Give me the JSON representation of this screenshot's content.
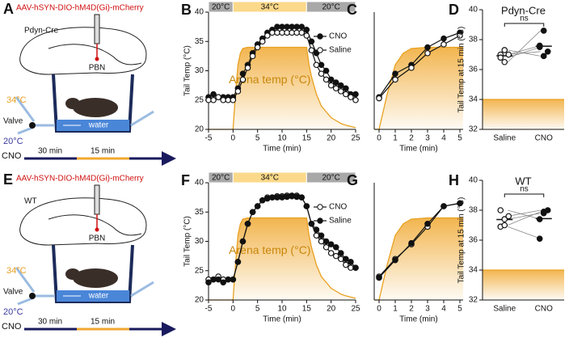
{
  "diagrams": [
    {
      "panel": "A",
      "construct": "AAV-hSYN-DIO-hM4D(Gi)-mCherry",
      "label": "Pdyn-Cre",
      "region": "PBN",
      "hot": "34°C",
      "valve": "Valve",
      "cold": "20°C",
      "water": "water",
      "drug": "CNO",
      "pre": "30 min",
      "post": "15 min"
    },
    {
      "panel": "E",
      "construct": "AAV-hSYN-DIO-hM4D(Gi)-mCherry",
      "label": "WT",
      "region": "PBN",
      "hot": "34°C",
      "valve": "Valve",
      "cold": "20°C",
      "water": "water",
      "drug": "CNO",
      "pre": "30 min",
      "post": "15 min"
    }
  ],
  "chart_data": [
    {
      "type": "line",
      "panel": "B",
      "xlabel": "Time (min)",
      "ylabel": "Tail Temp (°C)",
      "annotation": "Arena temp (°C)",
      "legend": "right",
      "xlim": [
        -5,
        25
      ],
      "xticks": [
        -5,
        0,
        5,
        10,
        15,
        20,
        25
      ],
      "ylim": [
        20,
        40
      ],
      "yticks": [
        20,
        25,
        30,
        35,
        40
      ],
      "phases": [
        {
          "label": "20°C",
          "start": -5,
          "end": 0
        },
        {
          "label": "34°C",
          "start": 0,
          "end": 15
        },
        {
          "label": "20°C",
          "start": 15,
          "end": 25
        }
      ],
      "x": [
        -5,
        -4,
        -3,
        -2,
        -1,
        0,
        1,
        2,
        3,
        4,
        5,
        6,
        7,
        8,
        9,
        10,
        11,
        12,
        13,
        14,
        15,
        16,
        17,
        18,
        19,
        20,
        21,
        22,
        23,
        24,
        25
      ],
      "series": [
        {
          "name": "CNO",
          "marker": "filled",
          "color": "#111111",
          "values": [
            25.5,
            26,
            25.5,
            25.5,
            25.5,
            25.5,
            27,
            29.5,
            31,
            33,
            34.5,
            35.5,
            36.5,
            37,
            37.5,
            37.5,
            37.5,
            37.5,
            37.5,
            37.5,
            37,
            35,
            33,
            31,
            30,
            28.5,
            28,
            27.5,
            27,
            26,
            26
          ]
        },
        {
          "name": "Saline",
          "marker": "open",
          "color": "#111111",
          "values": [
            25,
            25,
            25.5,
            25,
            25,
            25,
            26.5,
            28.5,
            30.5,
            32.5,
            34,
            35,
            36,
            36.5,
            36.5,
            36.5,
            36.5,
            36.5,
            36.5,
            36.5,
            36,
            33.5,
            31,
            29.5,
            28.5,
            27.5,
            27,
            26.5,
            26,
            25.5,
            25
          ]
        }
      ],
      "arena": {
        "color": "#e8a020",
        "x": [
          -5,
          0,
          0.5,
          1,
          1.5,
          2,
          3,
          15,
          15.5,
          16,
          17,
          18,
          19,
          20,
          21,
          22,
          23,
          24,
          25
        ],
        "values": [
          20,
          20,
          26,
          31,
          33,
          33.8,
          34,
          34,
          31,
          29,
          26,
          24,
          23,
          22,
          21.5,
          21,
          20.7,
          20.5,
          20.3
        ]
      }
    },
    {
      "type": "line",
      "panel": "C",
      "xlabel": "Time (min)",
      "xlim": [
        -0.3,
        5.2
      ],
      "xticks": [
        0,
        1,
        2,
        3,
        4,
        5
      ],
      "ylim": [
        20,
        40
      ],
      "x": [
        0,
        1,
        2,
        3,
        4,
        5
      ],
      "series": [
        {
          "name": "CNO",
          "marker": "filled",
          "color": "#111111",
          "values": [
            25.5,
            29.5,
            31,
            34,
            35.5,
            36.5
          ]
        },
        {
          "name": "Saline",
          "marker": "open",
          "color": "#111111",
          "values": [
            25.3,
            28.5,
            30.5,
            33,
            34.5,
            36
          ]
        }
      ],
      "arena": {
        "color": "#e8a020",
        "x": [
          -0.3,
          0,
          0.5,
          1,
          1.5,
          2,
          3,
          5.2
        ],
        "values": [
          20,
          20,
          26,
          31,
          33,
          33.8,
          34,
          34
        ]
      }
    },
    {
      "type": "dot",
      "panel": "D",
      "title": "Pdyn-Cre",
      "ylabel": "Tail Temp at 15 min (°C)",
      "annotation": "ns",
      "arena_temp": 34,
      "arena_color": "#e8a020",
      "ylim": [
        32,
        40
      ],
      "yticks": [
        32,
        34,
        36,
        38,
        40
      ],
      "series": [
        {
          "name": "Saline",
          "marker": "open",
          "values": [
            37,
            36.5,
            37,
            36.8,
            37.3
          ]
        },
        {
          "name": "CNO",
          "marker": "filled",
          "values": [
            37.6,
            38.6,
            37.2,
            37.5,
            36.9
          ]
        }
      ]
    },
    {
      "type": "line",
      "panel": "F",
      "xlabel": "Time (min)",
      "ylabel": "Tail Temp (°C)",
      "annotation": "Arena temp (°C)",
      "legend": "right",
      "xlim": [
        -5,
        25
      ],
      "xticks": [
        -5,
        0,
        5,
        10,
        15,
        20,
        25
      ],
      "ylim": [
        20,
        40
      ],
      "yticks": [
        20,
        25,
        30,
        35,
        40
      ],
      "phases": [
        {
          "label": "20°C",
          "start": -5,
          "end": 0
        },
        {
          "label": "34°C",
          "start": 0,
          "end": 15
        },
        {
          "label": "20°C",
          "start": 15,
          "end": 25
        }
      ],
      "x": [
        -5,
        -4,
        -3,
        -2,
        -1,
        0,
        1,
        2,
        3,
        4,
        5,
        6,
        7,
        8,
        9,
        10,
        11,
        12,
        13,
        14,
        15,
        16,
        17,
        18,
        19,
        20,
        21,
        22,
        23,
        24,
        25
      ],
      "series": [
        {
          "name": "CNO",
          "marker": "open",
          "color": "#111111",
          "values": [
            23.5,
            23.5,
            24,
            23.5,
            23.5,
            23.5,
            26.5,
            30,
            33,
            35,
            36,
            37,
            37.5,
            37.5,
            37.7,
            37.7,
            37.8,
            37.8,
            37.8,
            37.5,
            36,
            33,
            31,
            30,
            29,
            28,
            27.5,
            27,
            26,
            25.5,
            25.5
          ]
        },
        {
          "name": "Saline",
          "marker": "filled",
          "color": "#111111",
          "values": [
            23,
            23.5,
            23.5,
            23,
            23.5,
            23.5,
            26.5,
            30,
            33,
            35,
            36,
            37,
            37.3,
            37.5,
            37.5,
            37.5,
            37.6,
            37.7,
            37.6,
            37.5,
            36,
            33,
            32,
            31,
            30,
            29.5,
            29,
            28,
            27,
            26.5,
            25.5
          ]
        }
      ],
      "arena": {
        "color": "#e8a020",
        "x": [
          -5,
          0,
          0.5,
          1,
          1.5,
          2,
          3,
          15,
          15.5,
          16,
          17,
          18,
          19,
          20,
          21,
          22,
          23,
          24,
          25
        ],
        "values": [
          20,
          20,
          26,
          31,
          33,
          33.8,
          34,
          34,
          31,
          29,
          26,
          24,
          23,
          22,
          21.5,
          21,
          20.7,
          20.5,
          20.3
        ]
      }
    },
    {
      "type": "line",
      "panel": "G",
      "xlabel": "Time (min)",
      "xlim": [
        -0.3,
        5.2
      ],
      "xticks": [
        0,
        1,
        2,
        3,
        4,
        5
      ],
      "ylim": [
        20,
        40
      ],
      "x": [
        0,
        1,
        2,
        3,
        4,
        5
      ],
      "series": [
        {
          "name": "CNO",
          "marker": "open",
          "color": "#111111",
          "values": [
            24,
            27,
            29.5,
            32.5,
            36,
            36.5
          ]
        },
        {
          "name": "Saline",
          "marker": "filled",
          "color": "#111111",
          "values": [
            23.8,
            26.8,
            29.7,
            33,
            36,
            36.5
          ]
        }
      ],
      "arena": {
        "color": "#e8a020",
        "x": [
          -0.3,
          0,
          0.5,
          1,
          1.5,
          2,
          3,
          5.2
        ],
        "values": [
          20,
          20,
          26,
          31,
          33,
          33.8,
          34,
          34
        ]
      }
    },
    {
      "type": "dot",
      "panel": "H",
      "title": "WT",
      "ylabel": "Tail Temp at 15 min (°C)",
      "annotation": "ns",
      "arena_temp": 34,
      "arena_color": "#e8a020",
      "ylim": [
        32,
        40
      ],
      "yticks": [
        32,
        34,
        36,
        38,
        40
      ],
      "series": [
        {
          "name": "Saline",
          "marker": "open",
          "values": [
            38,
            37.4,
            37.6,
            36.9,
            37.0
          ]
        },
        {
          "name": "CNO",
          "marker": "filled",
          "values": [
            37.4,
            37.8,
            38,
            36.1,
            37.9
          ]
        }
      ]
    }
  ]
}
